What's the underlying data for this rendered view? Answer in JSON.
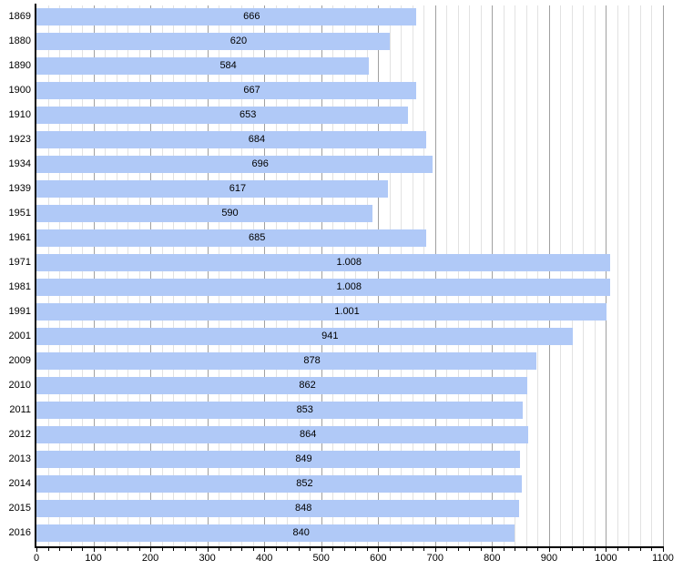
{
  "chart_data": {
    "type": "bar",
    "orientation": "horizontal",
    "title": "",
    "xlabel": "",
    "ylabel": "",
    "categories": [
      "1869",
      "1880",
      "1890",
      "1900",
      "1910",
      "1923",
      "1934",
      "1939",
      "1951",
      "1961",
      "1971",
      "1981",
      "1991",
      "2001",
      "2009",
      "2010",
      "2011",
      "2012",
      "2013",
      "2014",
      "2015",
      "2016"
    ],
    "values": [
      666,
      620,
      584,
      667,
      653,
      684,
      696,
      617,
      590,
      685,
      1008,
      1008,
      1001,
      941,
      878,
      862,
      853,
      864,
      849,
      852,
      848,
      840
    ],
    "value_labels": [
      "666",
      "620",
      "584",
      "667",
      "653",
      "684",
      "696",
      "617",
      "590",
      "685",
      "1.008",
      "1.008",
      "1.001",
      "941",
      "878",
      "862",
      "853",
      "864",
      "849",
      "852",
      "848",
      "840"
    ],
    "xlim": [
      0,
      1100
    ],
    "x_major_step": 100,
    "x_minor_step": 20,
    "x_tick_labels": [
      "0",
      "100",
      "200",
      "300",
      "400",
      "500",
      "600",
      "700",
      "800",
      "900",
      "1000",
      "1100"
    ],
    "grid": "on",
    "legend": "none",
    "colors": {
      "bar": "#b0c9f7",
      "grid_minor": "#e2e2e2",
      "grid_major": "#a0a0a0",
      "axis": "#000000",
      "text": "#000000",
      "background": "#ffffff"
    }
  }
}
